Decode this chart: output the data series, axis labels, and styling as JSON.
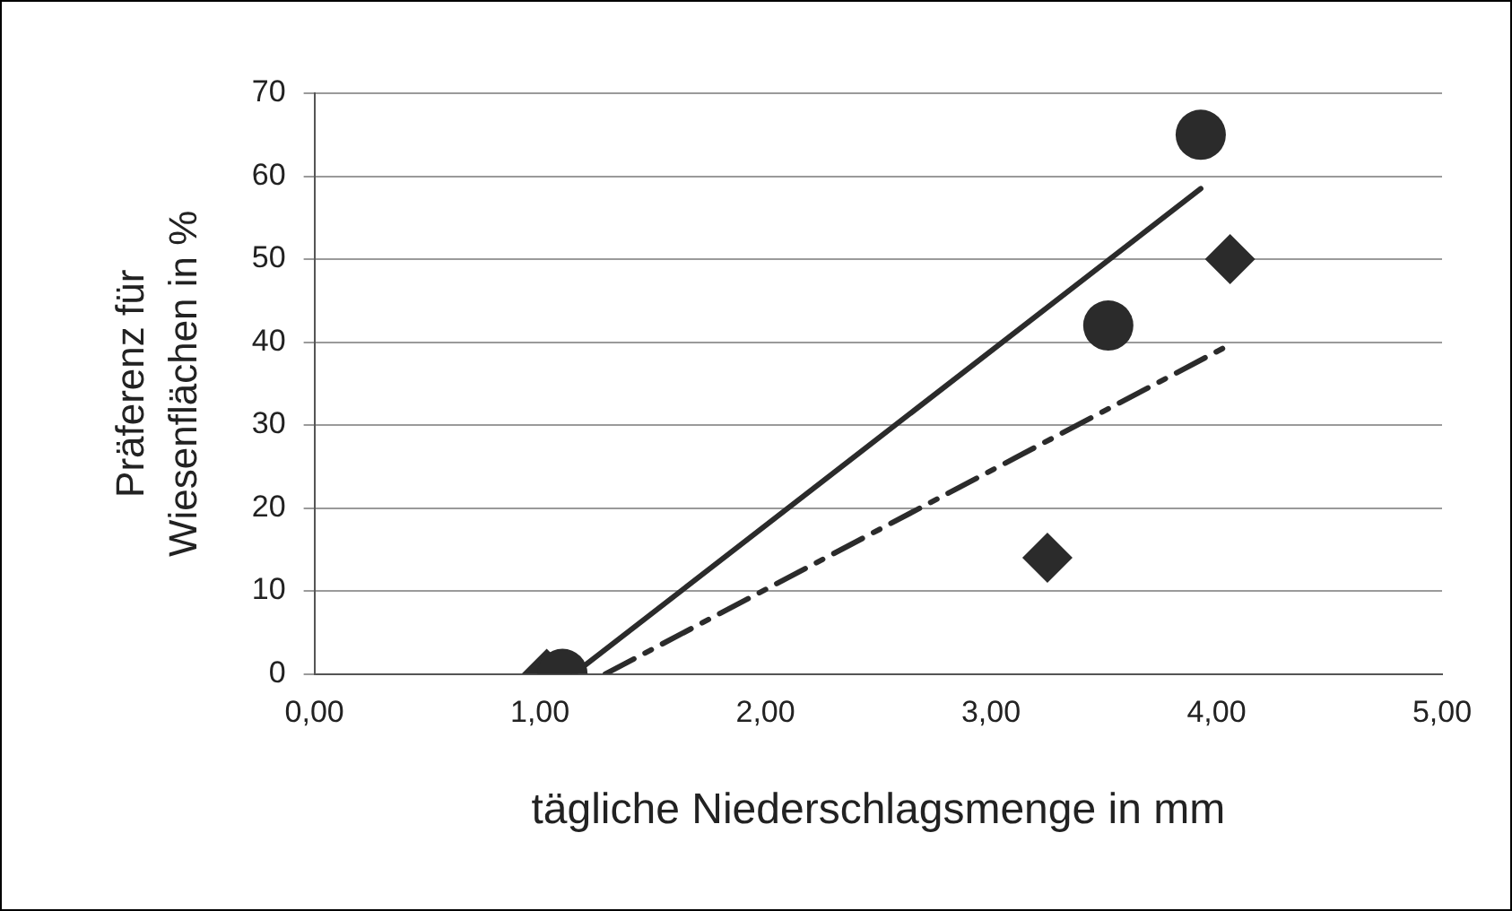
{
  "chart_data": {
    "type": "scatter",
    "xlabel": "tägliche Niederschlagsmenge in mm",
    "ylabel": "Präferenz für\nWiesenflächen in %",
    "xlim": [
      0,
      5
    ],
    "xticks": [
      {
        "value": 0,
        "label": "0,00"
      },
      {
        "value": 1,
        "label": "1,00"
      },
      {
        "value": 2,
        "label": "2,00"
      },
      {
        "value": 3,
        "label": "3,00"
      },
      {
        "value": 4,
        "label": "4,00"
      },
      {
        "value": 5,
        "label": "5,00"
      }
    ],
    "ylim": [
      0,
      70
    ],
    "yticks": [
      0,
      10,
      20,
      30,
      40,
      50,
      60,
      70
    ],
    "grid": "y",
    "legend": false,
    "series": [
      {
        "marker": "circle",
        "color": "#2b2b2b",
        "x": [
          1.1,
          3.52,
          3.93
        ],
        "values": [
          0,
          42,
          65
        ]
      },
      {
        "marker": "diamond",
        "color": "#2b2b2b",
        "x": [
          1.03,
          3.25,
          4.06
        ],
        "values": [
          0,
          14,
          50
        ]
      },
      {
        "type": "line",
        "marker": "none",
        "line_style": "solid",
        "color": "#2b2b2b",
        "x": [
          1.15,
          3.93
        ],
        "values": [
          0,
          58.5
        ]
      },
      {
        "type": "line",
        "marker": "none",
        "line_style": "dashed",
        "color": "#2b2b2b",
        "x": [
          1.29,
          4.06
        ],
        "values": [
          0,
          39.7
        ]
      }
    ]
  }
}
